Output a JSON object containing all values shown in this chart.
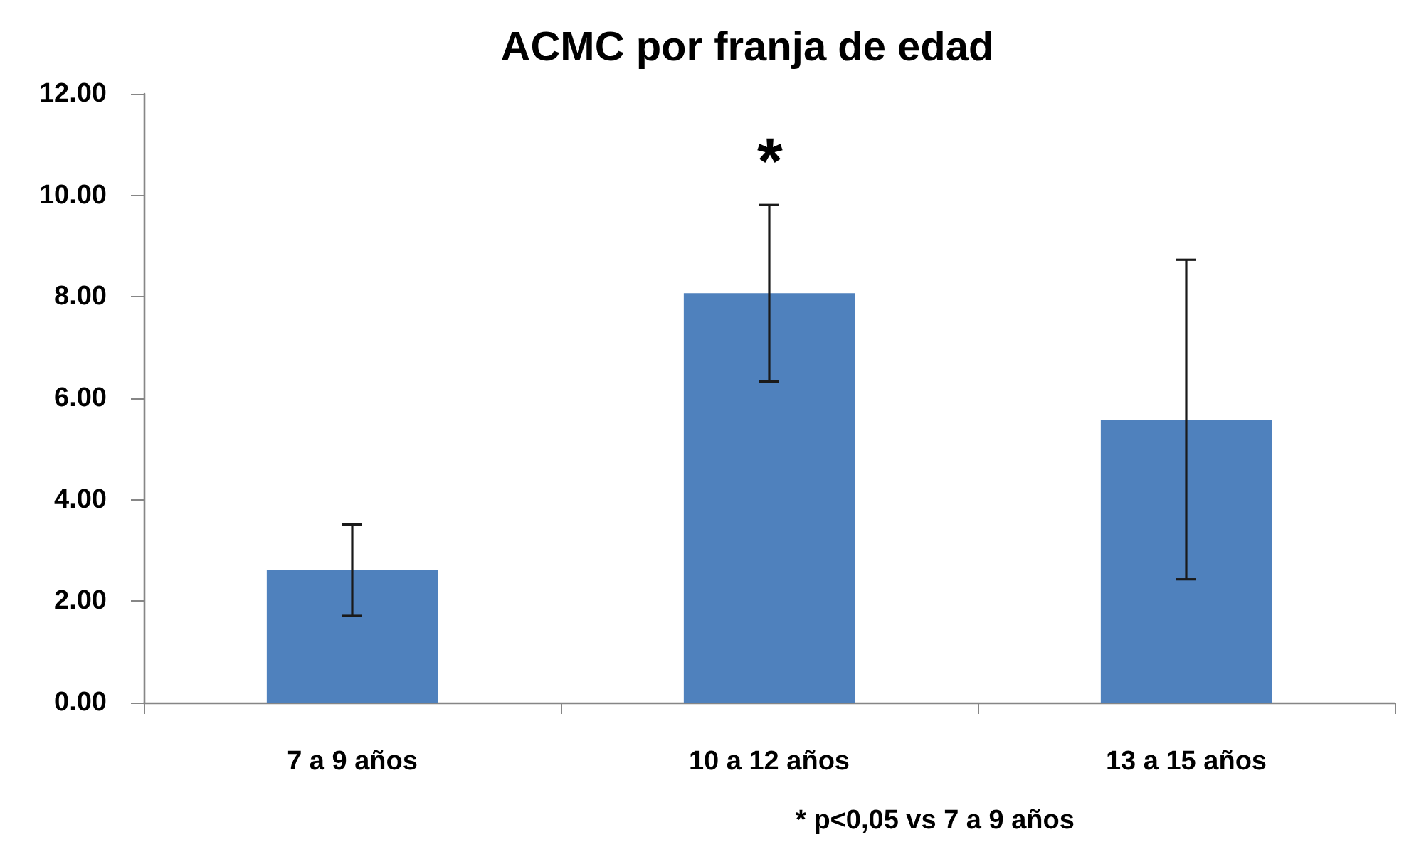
{
  "chart_data": {
    "type": "bar",
    "title": "ACMC por franja de edad",
    "categories": [
      "7 a 9 años",
      "10 a 12 años",
      "13 a 15 años"
    ],
    "values": [
      2.61,
      8.07,
      5.58
    ],
    "errors": [
      0.9,
      1.74,
      3.15
    ],
    "color": "#4f81bd",
    "ylim": [
      0,
      12
    ],
    "yticks": [
      {
        "value": 0,
        "label": "0.00"
      },
      {
        "value": 2,
        "label": "2.00"
      },
      {
        "value": 4,
        "label": "4.00"
      },
      {
        "value": 6,
        "label": "6.00"
      },
      {
        "value": 8,
        "label": "8.00"
      },
      {
        "value": 10,
        "label": "10.00"
      },
      {
        "value": 12,
        "label": "12.00"
      }
    ],
    "grid": false,
    "annotations": [
      "*",
      "* p<0,05 vs 7 a 9 años"
    ]
  }
}
